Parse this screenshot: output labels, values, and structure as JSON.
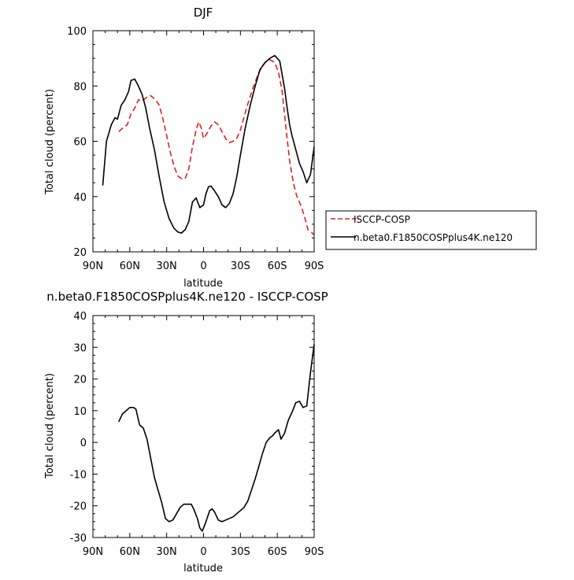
{
  "chart_data": [
    {
      "type": "line",
      "title": "DJF",
      "xlabel": "latitude",
      "ylabel": "Total cloud (percent)",
      "xlim": [
        -90,
        90
      ],
      "ylim": [
        20,
        100
      ],
      "x_ticks": [
        -90,
        -60,
        -30,
        0,
        30,
        60,
        90
      ],
      "x_tick_labels": [
        "90N",
        "60N",
        "30N",
        "0",
        "30S",
        "60S",
        "90S"
      ],
      "y_ticks": [
        20,
        40,
        60,
        80,
        100
      ],
      "y_tick_labels": [
        "20",
        "40",
        "60",
        "80",
        "100"
      ],
      "legend_position": "right-bottom-outside",
      "series": [
        {
          "name": "ISCCP-COSP",
          "color": "#e02020",
          "dash": "dashed",
          "x": [
            -69,
            -65,
            -62,
            -59,
            -56,
            -53,
            -50,
            -46,
            -43,
            -39,
            -36,
            -33,
            -30,
            -27,
            -24,
            -21,
            -18,
            -15,
            -12,
            -9,
            -6,
            -4,
            -2,
            0,
            3,
            6,
            9,
            12,
            15,
            18,
            21,
            24,
            27,
            30,
            35,
            40,
            45,
            50,
            54,
            58,
            61,
            64,
            67,
            70,
            73,
            76,
            79,
            82,
            85,
            88,
            90
          ],
          "y": [
            63.5,
            65,
            66,
            70,
            72,
            75,
            74.5,
            76,
            76.5,
            75,
            73,
            68,
            62,
            56,
            51,
            47.5,
            46.5,
            46.5,
            50,
            58,
            64,
            67,
            65,
            61,
            63,
            65.5,
            67,
            66,
            63.5,
            61,
            59.5,
            60,
            61,
            64,
            72,
            79,
            85,
            88.5,
            89.5,
            88.5,
            85,
            78,
            65,
            53,
            45,
            40,
            37,
            33,
            28,
            27,
            26
          ]
        },
        {
          "name": "n.beta0.F1850COSPplus4K.ne120",
          "color": "#000000",
          "dash": "solid",
          "x": [
            -82,
            -79,
            -75,
            -72,
            -70,
            -67,
            -64,
            -61,
            -59,
            -56,
            -53,
            -50,
            -47,
            -44,
            -40,
            -36,
            -32,
            -28,
            -24,
            -21,
            -18,
            -15,
            -12,
            -9,
            -6,
            -3,
            0,
            2,
            4,
            6,
            9,
            12,
            15,
            18,
            21,
            24,
            27,
            30,
            34,
            38,
            42,
            46,
            50,
            54,
            58,
            62,
            64,
            66,
            68,
            70,
            72,
            75,
            78,
            81,
            84,
            87,
            90
          ],
          "y": [
            44,
            60,
            66,
            68.5,
            68,
            73,
            75,
            78,
            82,
            82.5,
            80,
            77,
            72,
            65,
            57,
            47,
            38,
            32,
            28.5,
            27.2,
            26.8,
            28,
            31,
            38,
            39.5,
            36,
            37,
            41,
            43.5,
            43.8,
            42,
            40,
            37,
            36,
            37.5,
            41,
            47,
            55,
            65,
            73,
            80,
            86,
            88.5,
            90,
            91,
            89,
            84,
            79,
            72,
            66,
            62,
            57,
            52,
            49,
            45,
            48,
            58
          ]
        }
      ]
    },
    {
      "type": "line",
      "title": "n.beta0.F1850COSPplus4K.ne120 - ISCCP-COSP",
      "xlabel": "latitude",
      "ylabel": "Total cloud (percent)",
      "xlim": [
        -90,
        90
      ],
      "ylim": [
        -30,
        40
      ],
      "x_ticks": [
        -90,
        -60,
        -30,
        0,
        30,
        60,
        90
      ],
      "x_tick_labels": [
        "90N",
        "60N",
        "30N",
        "0",
        "30S",
        "60S",
        "90S"
      ],
      "y_ticks": [
        -30,
        -20,
        -10,
        0,
        10,
        20,
        30,
        40
      ],
      "y_tick_labels": [
        "-30",
        "-20",
        "-10",
        "0",
        "10",
        "20",
        "30",
        "40"
      ],
      "series": [
        {
          "color": "#000000",
          "dash": "solid",
          "x": [
            -69,
            -66,
            -63,
            -60,
            -57,
            -55,
            -52,
            -49,
            -46,
            -43,
            -40,
            -37,
            -34,
            -31,
            -28,
            -25,
            -22,
            -19,
            -16,
            -13,
            -10,
            -8,
            -5,
            -3,
            -1,
            2,
            5,
            7,
            9,
            12,
            15,
            18,
            21,
            24,
            27,
            30,
            33,
            36,
            39,
            42,
            45,
            48,
            51,
            54,
            56,
            58,
            61,
            63,
            66,
            69,
            72,
            75,
            78,
            81,
            84,
            87,
            90
          ],
          "y": [
            6.5,
            9,
            10,
            11,
            11,
            10.5,
            5.5,
            4.5,
            1,
            -5,
            -11,
            -15,
            -19,
            -24,
            -25,
            -24.5,
            -22.5,
            -20.5,
            -19.5,
            -19.5,
            -19.5,
            -21,
            -24,
            -27,
            -28,
            -25,
            -21.5,
            -21,
            -22,
            -24.5,
            -25,
            -24.5,
            -24,
            -23.5,
            -22.5,
            -21.5,
            -20.5,
            -18.5,
            -15,
            -11.5,
            -7.5,
            -3.5,
            0,
            1.5,
            2,
            3,
            4,
            1,
            3,
            7,
            9.5,
            12.5,
            13,
            11,
            11.5,
            22,
            31
          ]
        }
      ]
    }
  ]
}
